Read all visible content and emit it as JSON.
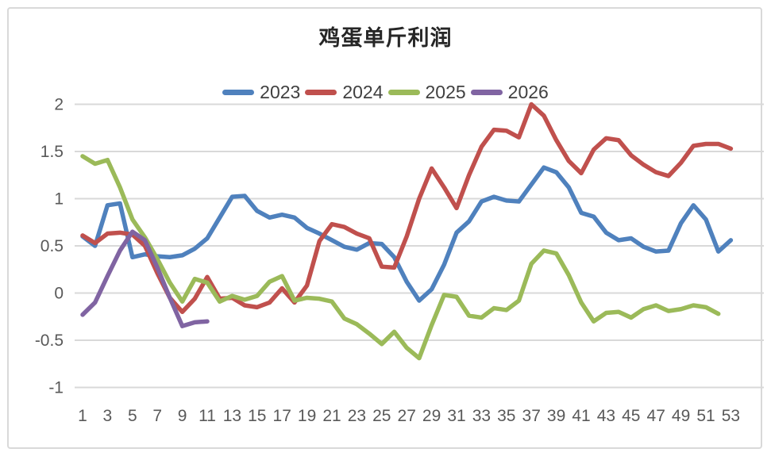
{
  "chart_data": {
    "type": "line",
    "title": "鸡蛋单斤利润",
    "xlabel": "",
    "ylabel": "",
    "x_unit": "week-of-year",
    "x_start": 1,
    "x_step": 1,
    "ylim": [
      -1,
      2
    ],
    "yticks": [
      2,
      1.5,
      1,
      0.5,
      0,
      -0.5,
      -1
    ],
    "xticks": [
      1,
      3,
      5,
      7,
      9,
      11,
      13,
      15,
      17,
      19,
      21,
      23,
      25,
      27,
      29,
      31,
      33,
      35,
      37,
      39,
      41,
      43,
      45,
      47,
      49,
      51,
      53
    ],
    "grid": "horizontal",
    "legend_position": "top",
    "axis_text_color": "#595959",
    "gridline_color": "#d9d9d9",
    "series": [
      {
        "name": "2023",
        "color": "#4F81BD",
        "values": [
          0.6,
          0.5,
          0.93,
          0.95,
          0.38,
          0.41,
          0.39,
          0.38,
          0.4,
          0.47,
          0.58,
          0.8,
          1.02,
          1.03,
          0.87,
          0.8,
          0.83,
          0.8,
          0.69,
          0.63,
          0.56,
          0.49,
          0.46,
          0.53,
          0.52,
          0.38,
          0.12,
          -0.08,
          0.04,
          0.3,
          0.64,
          0.76,
          0.97,
          1.02,
          0.98,
          0.97,
          1.15,
          1.33,
          1.28,
          1.12,
          0.85,
          0.81,
          0.64,
          0.56,
          0.58,
          0.49,
          0.44,
          0.45,
          0.74,
          0.93,
          0.78,
          0.44,
          0.56
        ]
      },
      {
        "name": "2024",
        "color": "#C0504D",
        "values": [
          0.61,
          0.53,
          0.63,
          0.64,
          0.62,
          0.5,
          0.21,
          -0.05,
          -0.2,
          -0.06,
          0.17,
          -0.06,
          -0.05,
          -0.13,
          -0.15,
          -0.1,
          0.05,
          -0.1,
          0.08,
          0.55,
          0.73,
          0.7,
          0.63,
          0.58,
          0.28,
          0.27,
          0.6,
          1.0,
          1.32,
          1.12,
          0.9,
          1.25,
          1.55,
          1.73,
          1.72,
          1.65,
          2.0,
          1.88,
          1.62,
          1.4,
          1.27,
          1.52,
          1.64,
          1.62,
          1.46,
          1.36,
          1.28,
          1.24,
          1.38,
          1.56,
          1.58,
          1.58,
          1.53
        ]
      },
      {
        "name": "2025",
        "color": "#9BBA59",
        "values": [
          1.45,
          1.37,
          1.41,
          1.12,
          0.78,
          0.59,
          0.36,
          0.11,
          -0.09,
          0.15,
          0.11,
          -0.09,
          -0.03,
          -0.07,
          -0.03,
          0.12,
          0.18,
          -0.08,
          -0.05,
          -0.06,
          -0.09,
          -0.27,
          -0.33,
          -0.43,
          -0.54,
          -0.41,
          -0.58,
          -0.69,
          -0.34,
          -0.02,
          -0.04,
          -0.24,
          -0.26,
          -0.16,
          -0.18,
          -0.08,
          0.31,
          0.45,
          0.42,
          0.19,
          -0.1,
          -0.3,
          -0.21,
          -0.2,
          -0.26,
          -0.17,
          -0.13,
          -0.19,
          -0.17,
          -0.13,
          -0.15,
          -0.22
        ]
      },
      {
        "name": "2026",
        "color": "#8064A2",
        "values": [
          -0.23,
          -0.1,
          0.18,
          0.45,
          0.65,
          0.56,
          0.27,
          -0.05,
          -0.35,
          -0.31,
          -0.3
        ]
      }
    ]
  }
}
